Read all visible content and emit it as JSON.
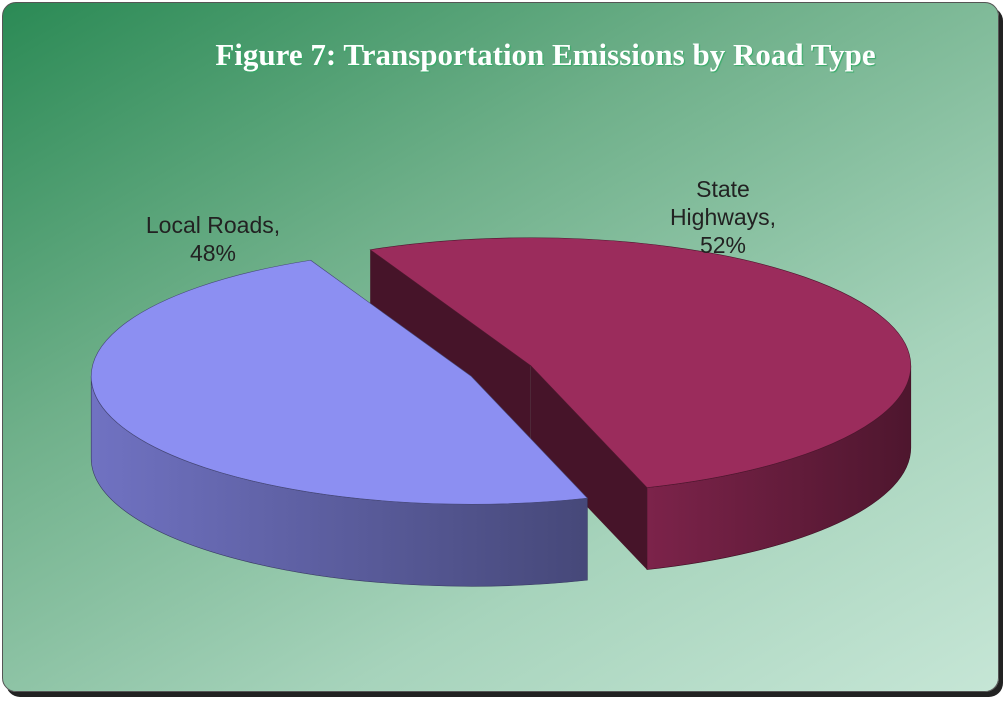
{
  "chart_data": {
    "type": "pie3d",
    "title": "Figure 7: Transportation Emissions by Road Type",
    "categories": [
      "Local Roads,",
      "State Highways,"
    ],
    "values": [
      48,
      52
    ],
    "value_labels": [
      "48%",
      "52%"
    ],
    "colors": [
      "#8c8ff2",
      "#9b2c5c"
    ]
  }
}
